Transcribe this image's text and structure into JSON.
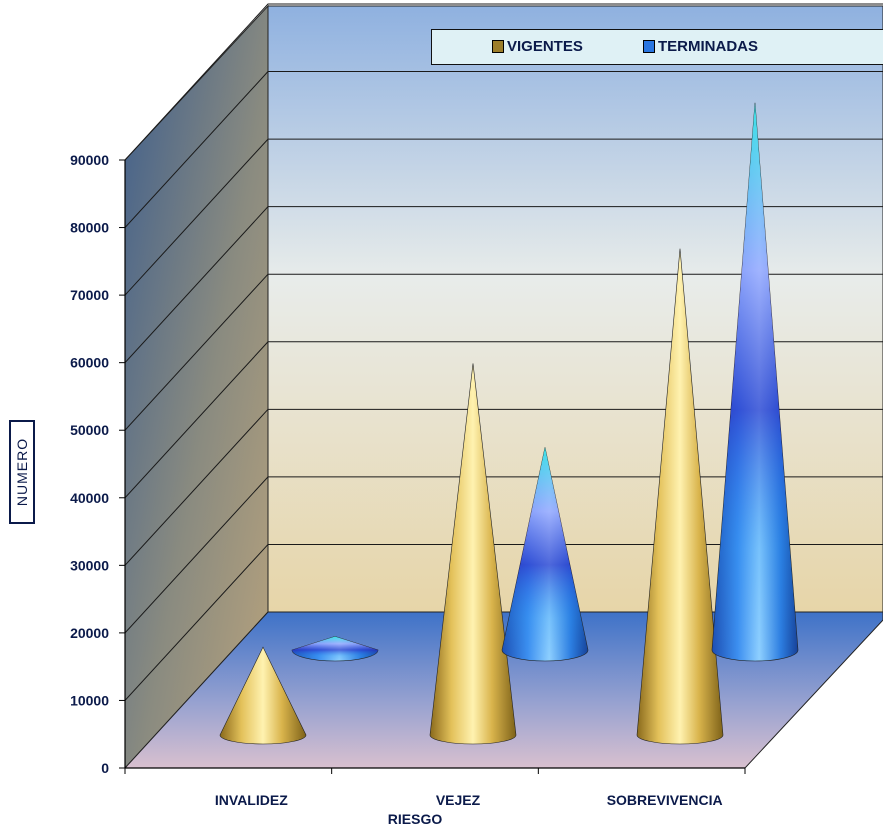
{
  "chart_data": {
    "type": "bar",
    "style": "3d-cone",
    "categories": [
      "INVALIDEZ",
      "VEJEZ",
      "SOBREVIVENCIA"
    ],
    "series": [
      {
        "name": "VIGENTES",
        "values": [
          13000,
          55000,
          72000
        ],
        "color": "#c9a93a"
      },
      {
        "name": "TERMINADAS",
        "values": [
          2000,
          30000,
          81000
        ],
        "color": "#2a6fd6"
      }
    ],
    "title": "",
    "xlabel": "RIESGO",
    "ylabel": "NUMERO",
    "ylim": [
      0,
      90000
    ],
    "yticks": [
      0,
      10000,
      20000,
      30000,
      40000,
      50000,
      60000,
      70000,
      80000,
      90000
    ],
    "grid": true,
    "legend_position": "top"
  },
  "legend": {
    "items": [
      {
        "label": "VIGENTES",
        "color": "#9c7e2a"
      },
      {
        "label": "TERMINADAS",
        "color": "#2a76e0"
      }
    ]
  }
}
